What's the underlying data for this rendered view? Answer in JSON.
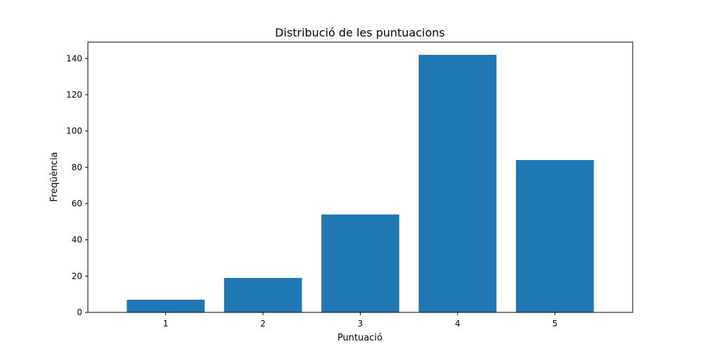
{
  "chart_data": {
    "type": "bar",
    "title": "Distribució de les puntuacions",
    "xlabel": "Puntuació",
    "ylabel": "Freqüència",
    "categories": [
      "1",
      "2",
      "3",
      "4",
      "5"
    ],
    "values": [
      7,
      19,
      54,
      142,
      84
    ],
    "ylim": [
      0,
      149
    ],
    "yticks": [
      0,
      20,
      40,
      60,
      80,
      100,
      120,
      140
    ],
    "grid": false,
    "bar_color": "#1f77b4"
  }
}
